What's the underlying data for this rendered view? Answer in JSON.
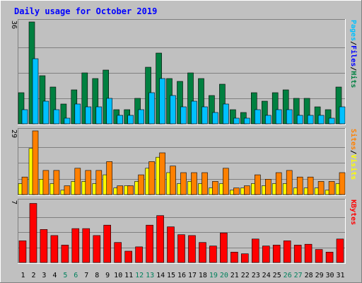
{
  "chart_data": {
    "type": "bar",
    "title": "Daily usage for October 2019",
    "categories": [
      "1",
      "2",
      "3",
      "4",
      "5",
      "6",
      "7",
      "8",
      "9",
      "10",
      "11",
      "12",
      "13",
      "14",
      "15",
      "16",
      "17",
      "18",
      "19",
      "20",
      "21",
      "22",
      "23",
      "24",
      "25",
      "26",
      "27",
      "28",
      "29",
      "30",
      "31"
    ],
    "weekend_days": [
      "5",
      "6",
      "12",
      "13",
      "19",
      "20",
      "26",
      "27"
    ],
    "panels": [
      {
        "name": "hits-files-pages",
        "ymax_label": "36",
        "ymax": 36,
        "legend": [
          {
            "text": "Pages",
            "color": "#00c0ff"
          },
          {
            "text": "/",
            "color": "#000000"
          },
          {
            "text": "Files",
            "color": "#0000ff"
          },
          {
            "text": "/",
            "color": "#000000"
          },
          {
            "text": "Hits",
            "color": "#008040"
          }
        ],
        "series": [
          {
            "name": "Hits",
            "color": "#008040",
            "values": [
              11,
              36,
              17,
              13,
              7,
              12,
              18,
              16,
              19,
              5,
              5,
              9,
              20,
              25,
              16,
              15,
              18,
              16,
              10,
              14,
              5,
              4,
              11,
              8,
              11,
              12,
              9,
              9,
              6,
              5,
              13
            ]
          },
          {
            "name": "Pages",
            "color": "#00c0ff",
            "values": [
              5,
              23,
              8,
              5,
              2,
              7,
              6,
              6,
              9,
              3,
              3,
              5,
              11,
              16,
              10,
              6,
              8,
              6,
              4,
              7,
              2,
              2,
              5,
              3,
              5,
              5,
              3,
              3,
              3,
              2,
              6
            ]
          }
        ]
      },
      {
        "name": "visits-sites",
        "ymax_label": "29",
        "ymax": 29,
        "legend": [
          {
            "text": "Sites",
            "color": "#ff8000"
          },
          {
            "text": "/",
            "color": "#000000"
          },
          {
            "text": "Visits",
            "color": "#ffff00"
          }
        ],
        "series": [
          {
            "name": "Visits",
            "color": "#ffff00",
            "values": [
              5,
              21,
              7,
              5,
              2,
              6,
              6,
              5,
              9,
              3,
              4,
              6,
              12,
              17,
              10,
              5,
              6,
              5,
              3,
              5,
              2,
              3,
              5,
              4,
              5,
              5,
              3,
              3,
              3,
              2,
              5
            ]
          },
          {
            "name": "Sites",
            "color": "#ff8000",
            "values": [
              8,
              29,
              11,
              11,
              4,
              12,
              11,
              11,
              15,
              4,
              4,
              9,
              15,
              19,
              13,
              10,
              10,
              10,
              6,
              12,
              3,
              4,
              9,
              7,
              10,
              11,
              8,
              8,
              6,
              6,
              10
            ]
          }
        ]
      },
      {
        "name": "kbytes",
        "ymax_label": "7",
        "ymax": 7,
        "legend": [
          {
            "text": "KBytes",
            "color": "#ff0000"
          }
        ],
        "series": [
          {
            "name": "KBytes",
            "color": "#ff0000",
            "values": [
              2.5,
              6.8,
              3.8,
              3.1,
              2.0,
              3.9,
              3.9,
              3.1,
              4.3,
              2.3,
              1.3,
              1.8,
              4.3,
              5.4,
              4.1,
              3.2,
              3.1,
              2.3,
              1.9,
              3.4,
              1.2,
              1.0,
              2.7,
              1.9,
              2.0,
              2.5,
              2.0,
              2.1,
              1.5,
              1.2,
              2.7
            ]
          }
        ]
      }
    ],
    "colors": {
      "background": "#c0c0c0",
      "title": "#0000ff",
      "gridline": "#808080",
      "weekend_label": "#00805c",
      "weekday_label": "#000000"
    }
  }
}
